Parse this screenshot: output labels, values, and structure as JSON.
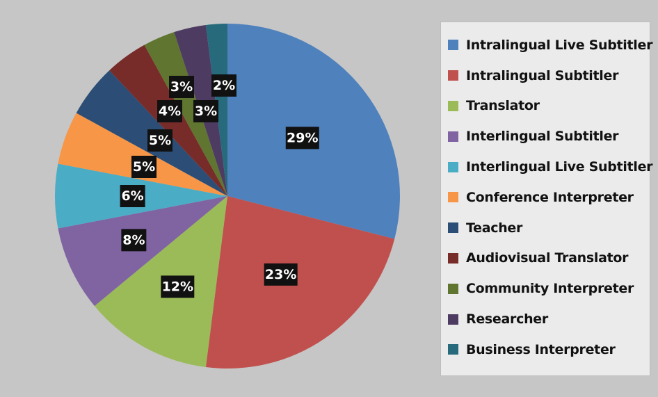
{
  "chart_data": {
    "type": "pie",
    "start_angle_deg": 0,
    "direction": "clockwise",
    "legend_position": "right",
    "slices": [
      {
        "name": "Intralingual Live Subtitler",
        "value": 29,
        "label": "29%",
        "color": "#4f81bd"
      },
      {
        "name": "Intralingual Subtitler",
        "value": 23,
        "label": "23%",
        "color": "#c0504d"
      },
      {
        "name": "Translator",
        "value": 12,
        "label": "12%",
        "color": "#9bbb59"
      },
      {
        "name": "Interlingual Subtitler",
        "value": 8,
        "label": "8%",
        "color": "#8064a2"
      },
      {
        "name": "Interlingual Live Subtitler",
        "value": 6,
        "label": "6%",
        "color": "#4bacc6"
      },
      {
        "name": "Conference Interpreter",
        "value": 5,
        "label": "5%",
        "color": "#f79646"
      },
      {
        "name": "Teacher",
        "value": 5,
        "label": "5%",
        "color": "#2c4d75"
      },
      {
        "name": "Audiovisual Translator",
        "value": 4,
        "label": "4%",
        "color": "#772c2a"
      },
      {
        "name": "Community Interpreter",
        "value": 3,
        "label": "3%",
        "color": "#5f7530"
      },
      {
        "name": "Researcher",
        "value": 3,
        "label": "3%",
        "color": "#4d3b62"
      },
      {
        "name": "Business Interpreter",
        "value": 2,
        "label": "2%",
        "color": "#276a7c"
      }
    ]
  }
}
